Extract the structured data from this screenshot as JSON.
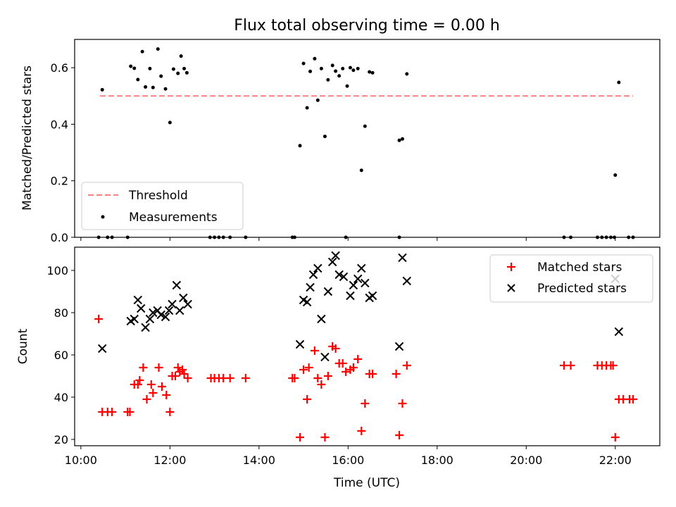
{
  "chart_data": [
    {
      "type": "scatter",
      "title": "Flux total observing time = 0.00 h",
      "xlabel": "",
      "ylabel": "Matched/Predicted stars",
      "xlim": [
        9.86,
        23.0
      ],
      "ylim": [
        0.0,
        0.7
      ],
      "yticks": [
        0.0,
        0.2,
        0.4,
        0.6
      ],
      "ytick_labels": [
        "0.0",
        "0.2",
        "0.4",
        "0.6"
      ],
      "grid": false,
      "legend": {
        "position": "lower-left",
        "entries": [
          "Threshold",
          "Measurements"
        ]
      },
      "threshold": {
        "name": "Threshold",
        "color": "#ff7f7f",
        "x": [
          10.43,
          22.4
        ],
        "y": [
          0.5,
          0.5
        ]
      },
      "measurements": {
        "name": "Measurements",
        "color": "#000000",
        "points": [
          [
            10.48,
            0.522
          ],
          [
            11.12,
            0.605
          ],
          [
            11.2,
            0.598
          ],
          [
            11.28,
            0.558
          ],
          [
            11.38,
            0.657
          ],
          [
            11.45,
            0.532
          ],
          [
            11.55,
            0.597
          ],
          [
            11.62,
            0.53
          ],
          [
            11.73,
            0.666
          ],
          [
            11.8,
            0.57
          ],
          [
            11.9,
            0.525
          ],
          [
            12.0,
            0.406
          ],
          [
            12.08,
            0.595
          ],
          [
            12.18,
            0.58
          ],
          [
            12.25,
            0.641
          ],
          [
            12.32,
            0.597
          ],
          [
            12.38,
            0.582
          ],
          [
            14.92,
            0.324
          ],
          [
            15.0,
            0.615
          ],
          [
            15.08,
            0.458
          ],
          [
            15.15,
            0.587
          ],
          [
            15.25,
            0.632
          ],
          [
            15.32,
            0.485
          ],
          [
            15.4,
            0.597
          ],
          [
            15.48,
            0.357
          ],
          [
            15.55,
            0.557
          ],
          [
            15.65,
            0.608
          ],
          [
            15.72,
            0.588
          ],
          [
            15.8,
            0.571
          ],
          [
            15.88,
            0.597
          ],
          [
            15.98,
            0.535
          ],
          [
            16.05,
            0.6
          ],
          [
            16.12,
            0.591
          ],
          [
            16.22,
            0.597
          ],
          [
            16.3,
            0.237
          ],
          [
            16.38,
            0.393
          ],
          [
            16.48,
            0.585
          ],
          [
            16.55,
            0.582
          ],
          [
            17.15,
            0.343
          ],
          [
            17.22,
            0.348
          ],
          [
            17.32,
            0.578
          ],
          [
            22.0,
            0.22
          ],
          [
            22.08,
            0.548
          ],
          [
            10.4,
            0.0
          ],
          [
            10.6,
            0.0
          ],
          [
            10.7,
            0.0
          ],
          [
            11.05,
            0.0
          ],
          [
            12.9,
            0.0
          ],
          [
            13.0,
            0.0
          ],
          [
            13.1,
            0.0
          ],
          [
            13.2,
            0.0
          ],
          [
            13.35,
            0.0
          ],
          [
            13.7,
            0.0
          ],
          [
            14.75,
            0.0
          ],
          [
            14.8,
            0.0
          ],
          [
            15.95,
            0.0
          ],
          [
            17.15,
            0.0
          ],
          [
            20.85,
            0.0
          ],
          [
            21.0,
            0.0
          ],
          [
            21.6,
            0.0
          ],
          [
            21.7,
            0.0
          ],
          [
            21.8,
            0.0
          ],
          [
            21.9,
            0.0
          ],
          [
            21.98,
            0.0
          ],
          [
            22.3,
            0.0
          ],
          [
            22.4,
            0.0
          ]
        ]
      }
    },
    {
      "type": "scatter",
      "title": "",
      "xlabel": "Time (UTC)",
      "ylabel": "Count",
      "xlim": [
        9.86,
        23.0
      ],
      "ylim": [
        17.0,
        111.0
      ],
      "xticks": [
        10,
        12,
        14,
        16,
        18,
        20,
        22
      ],
      "xtick_labels": [
        "10:00",
        "12:00",
        "14:00",
        "16:00",
        "18:00",
        "20:00",
        "22:00"
      ],
      "yticks": [
        20,
        40,
        60,
        80,
        100
      ],
      "ytick_labels": [
        "20",
        "40",
        "60",
        "80",
        "100"
      ],
      "grid": false,
      "legend": {
        "position": "upper-right",
        "entries": [
          "Matched stars",
          "Predicted stars"
        ]
      },
      "series": [
        {
          "name": "Matched stars",
          "marker": "+",
          "color": "#ff0000",
          "points": [
            [
              10.4,
              77
            ],
            [
              10.48,
              33
            ],
            [
              10.6,
              33
            ],
            [
              10.7,
              33
            ],
            [
              11.05,
              33
            ],
            [
              11.1,
              33
            ],
            [
              11.2,
              46
            ],
            [
              11.28,
              46
            ],
            [
              11.32,
              48
            ],
            [
              11.4,
              54
            ],
            [
              11.48,
              39
            ],
            [
              11.58,
              46
            ],
            [
              11.62,
              42
            ],
            [
              11.75,
              54
            ],
            [
              11.82,
              45
            ],
            [
              11.92,
              41
            ],
            [
              12.0,
              33
            ],
            [
              12.05,
              50
            ],
            [
              12.12,
              50
            ],
            [
              12.18,
              54
            ],
            [
              12.22,
              52
            ],
            [
              12.28,
              53
            ],
            [
              12.32,
              51
            ],
            [
              12.4,
              49
            ],
            [
              12.92,
              49
            ],
            [
              13.0,
              49
            ],
            [
              13.1,
              49
            ],
            [
              13.2,
              49
            ],
            [
              13.35,
              49
            ],
            [
              13.7,
              49
            ],
            [
              14.75,
              49
            ],
            [
              14.8,
              49
            ],
            [
              14.92,
              21
            ],
            [
              15.0,
              53
            ],
            [
              15.08,
              39
            ],
            [
              15.12,
              54
            ],
            [
              15.25,
              62
            ],
            [
              15.32,
              49
            ],
            [
              15.4,
              46
            ],
            [
              15.48,
              21
            ],
            [
              15.55,
              50
            ],
            [
              15.65,
              64
            ],
            [
              15.72,
              63
            ],
            [
              15.8,
              56
            ],
            [
              15.88,
              56
            ],
            [
              15.95,
              52
            ],
            [
              16.05,
              53
            ],
            [
              16.12,
              54
            ],
            [
              16.22,
              58
            ],
            [
              16.3,
              24
            ],
            [
              16.38,
              37
            ],
            [
              16.48,
              51
            ],
            [
              16.55,
              51
            ],
            [
              17.08,
              51
            ],
            [
              17.15,
              22
            ],
            [
              17.22,
              37
            ],
            [
              17.32,
              55
            ],
            [
              20.85,
              55
            ],
            [
              21.0,
              55
            ],
            [
              21.6,
              55
            ],
            [
              21.7,
              55
            ],
            [
              21.8,
              55
            ],
            [
              21.9,
              55
            ],
            [
              21.95,
              55
            ],
            [
              22.0,
              21
            ],
            [
              22.08,
              39
            ],
            [
              22.18,
              39
            ],
            [
              22.32,
              39
            ],
            [
              22.4,
              39
            ]
          ]
        },
        {
          "name": "Predicted stars",
          "marker": "x",
          "color": "#000000",
          "points": [
            [
              10.48,
              63
            ],
            [
              11.12,
              76
            ],
            [
              11.2,
              77
            ],
            [
              11.28,
              86
            ],
            [
              11.35,
              82
            ],
            [
              11.45,
              73
            ],
            [
              11.55,
              77
            ],
            [
              11.62,
              80
            ],
            [
              11.72,
              81
            ],
            [
              11.8,
              79
            ],
            [
              11.9,
              78
            ],
            [
              11.98,
              81
            ],
            [
              12.05,
              84
            ],
            [
              12.15,
              93
            ],
            [
              12.22,
              81
            ],
            [
              12.3,
              87
            ],
            [
              12.4,
              84
            ],
            [
              14.92,
              65
            ],
            [
              15.0,
              86
            ],
            [
              15.08,
              85
            ],
            [
              15.15,
              92
            ],
            [
              15.22,
              98
            ],
            [
              15.32,
              101
            ],
            [
              15.4,
              77
            ],
            [
              15.48,
              59
            ],
            [
              15.55,
              90
            ],
            [
              15.65,
              104
            ],
            [
              15.72,
              107
            ],
            [
              15.8,
              98
            ],
            [
              15.9,
              97
            ],
            [
              16.05,
              88
            ],
            [
              16.12,
              93
            ],
            [
              16.22,
              96
            ],
            [
              16.3,
              101
            ],
            [
              16.38,
              94
            ],
            [
              16.48,
              87
            ],
            [
              16.55,
              88
            ],
            [
              17.15,
              64
            ],
            [
              17.22,
              106
            ],
            [
              17.32,
              95
            ],
            [
              22.0,
              96
            ],
            [
              22.08,
              71
            ]
          ]
        }
      ]
    }
  ]
}
